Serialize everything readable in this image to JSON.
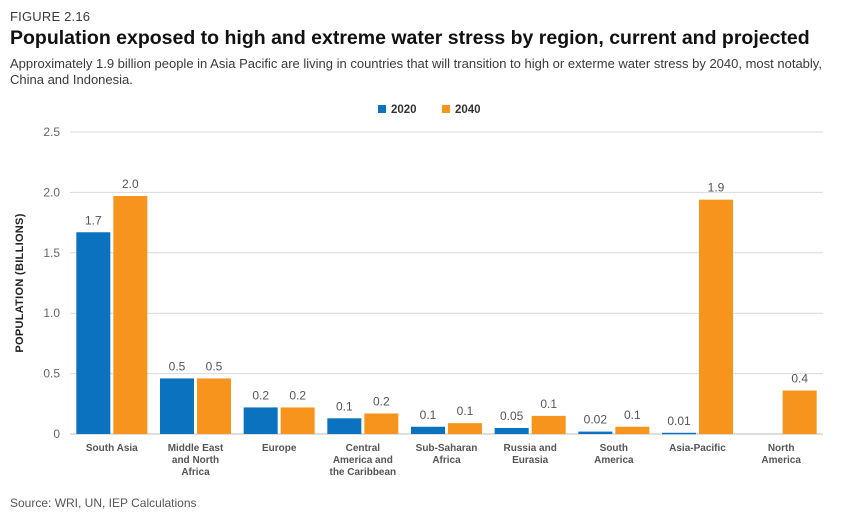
{
  "figure": {
    "label": "FIGURE 2.16",
    "title": "Population exposed to high and extreme water stress by region, current and projected",
    "subtitle": "Approximately 1.9 billion people in Asia Pacific are living in countries that will transition to high or exterme water stress by 2040, most notably, China and Indonesia.",
    "source": "Source: WRI, UN, IEP Calculations"
  },
  "chart_data": {
    "type": "bar",
    "ylabel": "POPULATION (BILLIONS)",
    "xlabel": "",
    "ylim": [
      0,
      2.5
    ],
    "yticks": [
      0,
      0.5,
      1.0,
      1.5,
      2.0,
      2.5
    ],
    "ytick_labels": [
      "0",
      "0.5",
      "1.0",
      "1.5",
      "2.0",
      "2.5"
    ],
    "grid": true,
    "legend_position": "top-center",
    "categories": [
      [
        "South Asia"
      ],
      [
        "Middle East",
        "and North",
        "Africa"
      ],
      [
        "Europe"
      ],
      [
        "Central",
        "America and",
        "the Caribbean"
      ],
      [
        "Sub-Saharan",
        "Africa"
      ],
      [
        "Russia and",
        "Eurasia"
      ],
      [
        "South",
        "America"
      ],
      [
        "Asia-Pacific"
      ],
      [
        "North",
        "America"
      ]
    ],
    "series": [
      {
        "name": "2020",
        "color": "#0a72bf",
        "values": [
          1.67,
          0.46,
          0.22,
          0.13,
          0.06,
          0.05,
          0.02,
          0.01,
          0
        ],
        "labels": [
          "1.7",
          "0.5",
          "0.2",
          "0.1",
          "0.1",
          "0.05",
          "0.02",
          "0.01",
          ""
        ]
      },
      {
        "name": "2040",
        "color": "#f7941d",
        "values": [
          1.97,
          0.46,
          0.22,
          0.17,
          0.09,
          0.15,
          0.06,
          1.94,
          0.36
        ],
        "labels": [
          "2.0",
          "0.5",
          "0.2",
          "0.2",
          "0.1",
          "0.1",
          "0.1",
          "1.9",
          "0.4"
        ]
      }
    ]
  }
}
